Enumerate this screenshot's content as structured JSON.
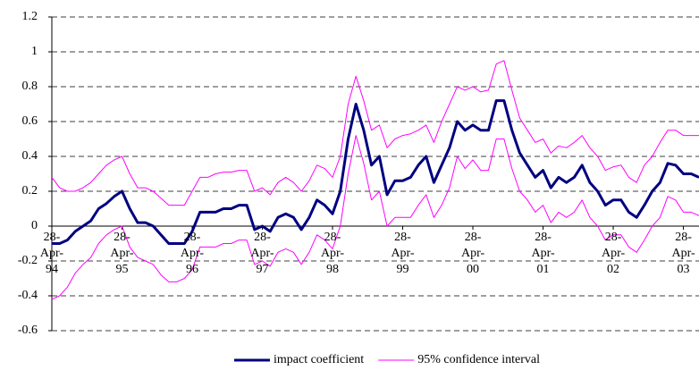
{
  "chart_data": {
    "type": "line",
    "categories": [
      "28-Apr-94",
      null,
      null,
      null,
      null,
      null,
      null,
      null,
      null,
      "28-Apr-95",
      null,
      null,
      null,
      null,
      null,
      null,
      null,
      null,
      "28-Apr-96",
      null,
      null,
      null,
      null,
      null,
      null,
      null,
      null,
      "28-Apr-97",
      null,
      null,
      null,
      null,
      null,
      null,
      null,
      null,
      "28-Apr-98",
      null,
      null,
      null,
      null,
      null,
      null,
      null,
      null,
      "28-Apr-99",
      null,
      null,
      null,
      null,
      null,
      null,
      null,
      null,
      "28-Apr-00",
      null,
      null,
      null,
      null,
      null,
      null,
      null,
      null,
      "28-Apr-01",
      null,
      null,
      null,
      null,
      null,
      null,
      null,
      null,
      "28-Apr-02",
      null,
      null,
      null,
      null,
      null,
      null,
      null,
      null,
      "28-Apr-03",
      null,
      null
    ],
    "series": [
      {
        "name": "impact coefficient",
        "color": "#000080",
        "values": [
          -0.1,
          -0.1,
          -0.08,
          -0.03,
          0.0,
          0.03,
          0.1,
          0.13,
          0.17,
          0.2,
          0.1,
          0.02,
          0.02,
          0.0,
          -0.05,
          -0.1,
          -0.1,
          -0.1,
          -0.03,
          0.08,
          0.08,
          0.08,
          0.1,
          0.1,
          0.12,
          0.12,
          -0.02,
          0.0,
          -0.03,
          0.05,
          0.07,
          0.05,
          -0.02,
          0.05,
          0.15,
          0.12,
          0.07,
          0.2,
          0.5,
          0.7,
          0.55,
          0.35,
          0.4,
          0.18,
          0.26,
          0.26,
          0.28,
          0.35,
          0.4,
          0.25,
          0.35,
          0.45,
          0.6,
          0.55,
          0.58,
          0.55,
          0.55,
          0.72,
          0.72,
          0.55,
          0.42,
          0.35,
          0.28,
          0.32,
          0.22,
          0.28,
          0.25,
          0.28,
          0.35,
          0.25,
          0.2,
          0.12,
          0.15,
          0.15,
          0.08,
          0.05,
          0.12,
          0.2,
          0.25,
          0.36,
          0.35,
          0.3,
          0.3,
          0.28
        ]
      },
      {
        "name": "95% confidence interval",
        "color": "#ff00ff",
        "upper": [
          0.28,
          0.22,
          0.2,
          0.2,
          0.22,
          0.25,
          0.3,
          0.35,
          0.38,
          0.4,
          0.3,
          0.22,
          0.22,
          0.2,
          0.16,
          0.12,
          0.12,
          0.12,
          0.2,
          0.28,
          0.28,
          0.3,
          0.31,
          0.31,
          0.32,
          0.32,
          0.2,
          0.22,
          0.18,
          0.25,
          0.28,
          0.25,
          0.2,
          0.26,
          0.35,
          0.33,
          0.28,
          0.4,
          0.7,
          0.86,
          0.72,
          0.55,
          0.58,
          0.45,
          0.5,
          0.52,
          0.53,
          0.55,
          0.58,
          0.48,
          0.6,
          0.7,
          0.8,
          0.78,
          0.8,
          0.77,
          0.78,
          0.93,
          0.95,
          0.78,
          0.62,
          0.55,
          0.48,
          0.5,
          0.42,
          0.46,
          0.45,
          0.48,
          0.52,
          0.45,
          0.4,
          0.32,
          0.34,
          0.35,
          0.28,
          0.25,
          0.35,
          0.4,
          0.48,
          0.55,
          0.55,
          0.52,
          0.52,
          0.52
        ],
        "lower": [
          -0.42,
          -0.4,
          -0.35,
          -0.27,
          -0.22,
          -0.18,
          -0.1,
          -0.05,
          -0.02,
          0.0,
          -0.12,
          -0.18,
          -0.2,
          -0.22,
          -0.28,
          -0.32,
          -0.32,
          -0.3,
          -0.25,
          -0.12,
          -0.12,
          -0.12,
          -0.1,
          -0.1,
          -0.08,
          -0.08,
          -0.22,
          -0.2,
          -0.23,
          -0.15,
          -0.13,
          -0.15,
          -0.22,
          -0.15,
          -0.05,
          -0.08,
          -0.13,
          0.0,
          0.3,
          0.52,
          0.36,
          0.15,
          0.2,
          0.0,
          0.05,
          0.05,
          0.05,
          0.12,
          0.18,
          0.05,
          0.12,
          0.22,
          0.4,
          0.33,
          0.38,
          0.32,
          0.32,
          0.5,
          0.5,
          0.33,
          0.2,
          0.15,
          0.08,
          0.12,
          0.02,
          0.08,
          0.05,
          0.08,
          0.15,
          0.05,
          0.0,
          -0.08,
          -0.05,
          -0.05,
          -0.12,
          -0.15,
          -0.08,
          0.0,
          0.05,
          0.17,
          0.15,
          0.08,
          0.08,
          0.06
        ]
      }
    ],
    "ylim": [
      -0.6,
      1.2
    ],
    "yticks": [
      -0.6,
      -0.4,
      -0.2,
      0,
      0.2,
      0.4,
      0.6,
      0.8,
      1,
      1.2
    ],
    "grid": true
  }
}
